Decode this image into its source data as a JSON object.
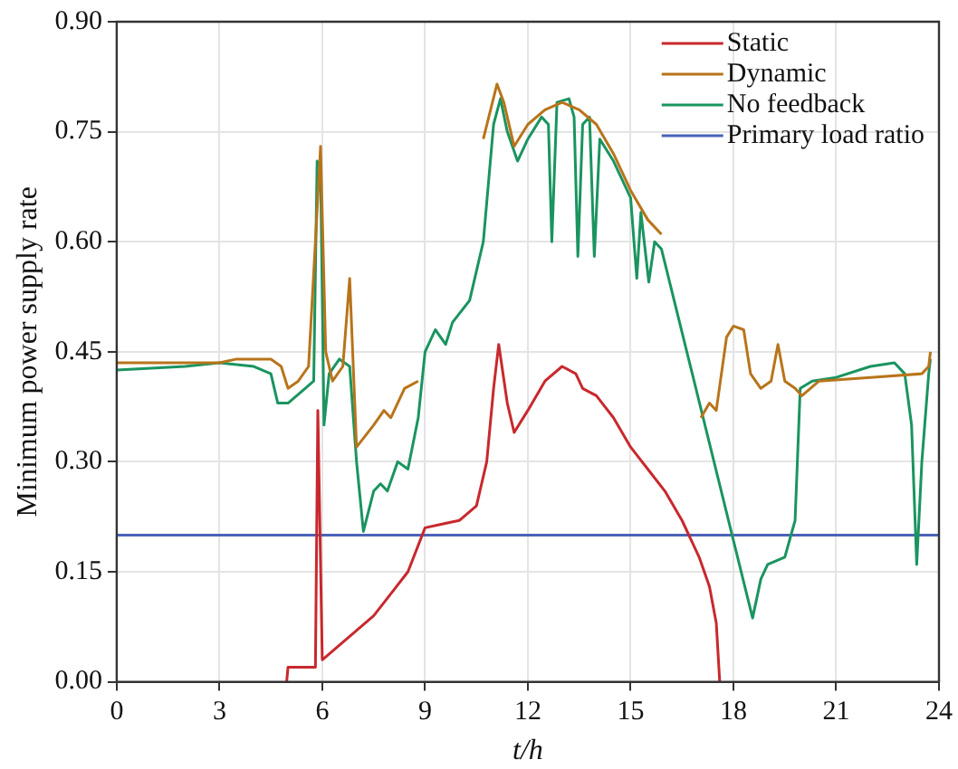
{
  "chart_data": {
    "type": "line",
    "xlabel": "t/h",
    "ylabel": "Minimum power supply rate",
    "xlim": [
      0,
      24
    ],
    "xticks": [
      0,
      3,
      6,
      9,
      12,
      15,
      18,
      21,
      24
    ],
    "ylim": [
      0,
      0.9
    ],
    "yticks": [
      {
        "value": 0,
        "label": "0.00"
      },
      {
        "value": 0.15,
        "label": "0.15"
      },
      {
        "value": 0.3,
        "label": "0.30"
      },
      {
        "value": 0.45,
        "label": "0.45"
      },
      {
        "value": 0.6,
        "label": "0.60"
      },
      {
        "value": 0.75,
        "label": "0.75"
      },
      {
        "value": 0.9,
        "label": "0.90"
      }
    ],
    "grid": true,
    "legend": "top right",
    "marker": "none",
    "line_style": "solid",
    "series": [
      {
        "name": "Static",
        "color": "#c8282d",
        "x": [
          4.96,
          5.0,
          5.4,
          5.8,
          5.87,
          6.0,
          6.5,
          7.0,
          7.5,
          8.0,
          8.5,
          9.0,
          9.5,
          10.0,
          10.5,
          10.8,
          11.0,
          11.15,
          11.4,
          11.6,
          12.0,
          12.5,
          13.0,
          13.4,
          13.6,
          14.0,
          14.5,
          15.0,
          15.5,
          16.0,
          16.5,
          17.0,
          17.3,
          17.5,
          17.6
        ],
        "values": [
          0,
          0.02,
          0.02,
          0.02,
          0.37,
          0.03,
          0.05,
          0.07,
          0.09,
          0.12,
          0.15,
          0.21,
          0.215,
          0.22,
          0.24,
          0.3,
          0.4,
          0.46,
          0.38,
          0.34,
          0.37,
          0.41,
          0.43,
          0.42,
          0.4,
          0.39,
          0.36,
          0.32,
          0.29,
          0.26,
          0.22,
          0.17,
          0.13,
          0.08,
          0
        ]
      },
      {
        "name": "Dynamic",
        "color": "#b8741a",
        "x": [
          0,
          3,
          3.5,
          4.5,
          4.8,
          5.0,
          5.3,
          5.6,
          5.8,
          5.95,
          6.1,
          6.3,
          6.6,
          6.8,
          7.0,
          7.5,
          7.8,
          8.0,
          8.4,
          8.8,
          9.5,
          10.7,
          11.1,
          11.3,
          11.6,
          12.0,
          12.5,
          13.0,
          13.5,
          14.0,
          14.5,
          15.0,
          15.5,
          15.9,
          16.5,
          17.05,
          17.3,
          17.5,
          17.8,
          18.0,
          18.3,
          18.5,
          18.8,
          19.1,
          19.3,
          19.5,
          19.8,
          20.0,
          20.5,
          22.0,
          23.5,
          23.7,
          23.75
        ],
        "values": [
          0.435,
          0.435,
          0.44,
          0.44,
          0.43,
          0.4,
          0.41,
          0.43,
          0.6,
          0.73,
          0.45,
          0.41,
          0.43,
          0.55,
          0.32,
          0.35,
          0.37,
          0.36,
          0.4,
          0.41,
          null,
          0.74,
          0.815,
          0.79,
          0.73,
          0.76,
          0.78,
          0.79,
          0.78,
          0.76,
          0.72,
          0.67,
          0.63,
          0.61,
          null,
          0.36,
          0.38,
          0.37,
          0.47,
          0.485,
          0.48,
          0.42,
          0.4,
          0.41,
          0.46,
          0.41,
          0.4,
          0.39,
          0.41,
          0.415,
          0.42,
          0.43,
          0.45
        ]
      },
      {
        "name": "No feedback",
        "color": "#1a9460",
        "x": [
          0,
          2,
          3,
          4,
          4.5,
          4.7,
          5.0,
          5.5,
          5.75,
          5.85,
          5.95,
          6.05,
          6.2,
          6.5,
          6.8,
          7.0,
          7.2,
          7.5,
          7.7,
          7.9,
          8.2,
          8.5,
          8.8,
          9.0,
          9.3,
          9.6,
          9.8,
          10.3,
          10.7,
          11.0,
          11.2,
          11.4,
          11.7,
          12.0,
          12.4,
          12.6,
          12.7,
          12.85,
          13.2,
          13.35,
          13.46,
          13.6,
          13.8,
          13.94,
          14.1,
          14.5,
          15.0,
          15.18,
          15.3,
          15.53,
          15.7,
          15.9,
          18.56,
          18.8,
          19.0,
          19.5,
          19.8,
          19.95,
          20.3,
          21.0,
          22.0,
          22.7,
          23.0,
          23.2,
          23.35,
          23.5,
          23.7,
          23.75
        ],
        "values": [
          0.425,
          0.43,
          0.435,
          0.43,
          0.42,
          0.38,
          0.38,
          0.4,
          0.41,
          0.71,
          0.7,
          0.35,
          0.42,
          0.44,
          0.43,
          0.3,
          0.205,
          0.26,
          0.27,
          0.26,
          0.3,
          0.29,
          0.36,
          0.45,
          0.48,
          0.46,
          0.49,
          0.52,
          0.6,
          0.76,
          0.795,
          0.75,
          0.71,
          0.74,
          0.77,
          0.76,
          0.6,
          0.79,
          0.795,
          0.77,
          0.58,
          0.76,
          0.77,
          0.58,
          0.74,
          0.71,
          0.66,
          0.55,
          0.64,
          0.545,
          0.6,
          0.59,
          0.087,
          0.14,
          0.16,
          0.17,
          0.22,
          0.4,
          0.41,
          0.415,
          0.43,
          0.435,
          0.42,
          0.35,
          0.16,
          0.3,
          0.42,
          0.44
        ]
      },
      {
        "name": "Primary load ratio",
        "color": "#4a63b8",
        "x": [
          0,
          24
        ],
        "values": [
          0.2,
          0.2
        ]
      }
    ]
  }
}
